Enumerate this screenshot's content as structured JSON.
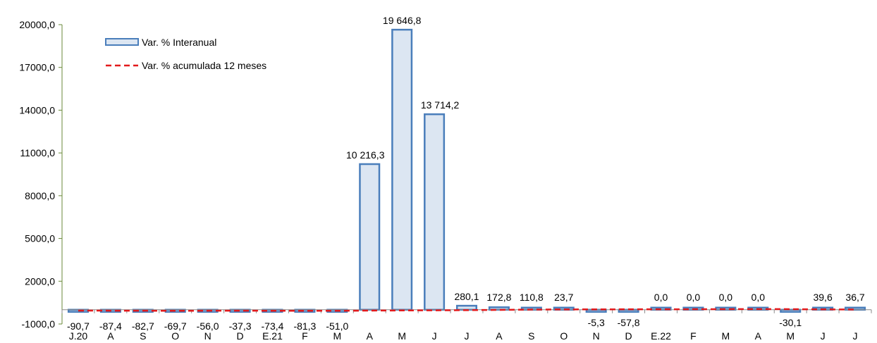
{
  "chart_data": {
    "type": "bar",
    "categories": [
      "J.20",
      "A",
      "S",
      "O",
      "N",
      "D",
      "E.21",
      "F",
      "M",
      "A",
      "M",
      "J",
      "J",
      "A",
      "S",
      "O",
      "N",
      "D",
      "E.22",
      "F",
      "M",
      "A",
      "M",
      "J",
      "J"
    ],
    "series": [
      {
        "name": "Var. % Interanual",
        "type": "bar",
        "values": [
          -90.7,
          -87.4,
          -82.7,
          -69.7,
          -56.0,
          -37.3,
          -73.4,
          -81.3,
          -51.0,
          10216.3,
          19646.8,
          13714.2,
          280.1,
          172.8,
          110.8,
          23.7,
          -5.3,
          -57.8,
          0.0,
          0.0,
          0.0,
          0.0,
          -30.1,
          39.6,
          36.7
        ],
        "labels": [
          "-90,7",
          "-87,4",
          "-82,7",
          "-69,7",
          "-56,0",
          "-37,3",
          "-73,4",
          "-81,3",
          "-51,0",
          "10 216,3",
          "19 646,8",
          "13 714,2",
          "280,1",
          "172,8",
          "110,8",
          "23,7",
          "-5,3",
          "-57,8",
          "0,0",
          "0,0",
          "0,0",
          "0,0",
          "-30,1",
          "39,6",
          "36,7"
        ]
      },
      {
        "name": "Var. % acumulada 12 meses",
        "type": "line",
        "values": [
          -60,
          -65,
          -70,
          -72,
          -70,
          -68,
          -72,
          -75,
          -76,
          -60,
          -50,
          -40,
          -30,
          -10,
          10,
          20,
          25,
          30,
          30,
          35,
          40,
          45,
          40,
          25,
          15
        ]
      }
    ],
    "ylim": [
      -1000,
      20000
    ],
    "yticks": [
      "-1000,0",
      "2000,0",
      "5000,0",
      "8000,0",
      "11000,0",
      "14000,0",
      "17000,0",
      "20000,0"
    ],
    "ytick_values": [
      -1000,
      2000,
      5000,
      8000,
      11000,
      14000,
      17000,
      20000
    ],
    "legend_position": "top-left",
    "colors": {
      "bar_fill": "#dce6f2",
      "bar_stroke": "#4a7ebb",
      "line": "#e31a1c",
      "axis": "#8a8a8a",
      "y_axis": "#6a8a3a"
    }
  }
}
